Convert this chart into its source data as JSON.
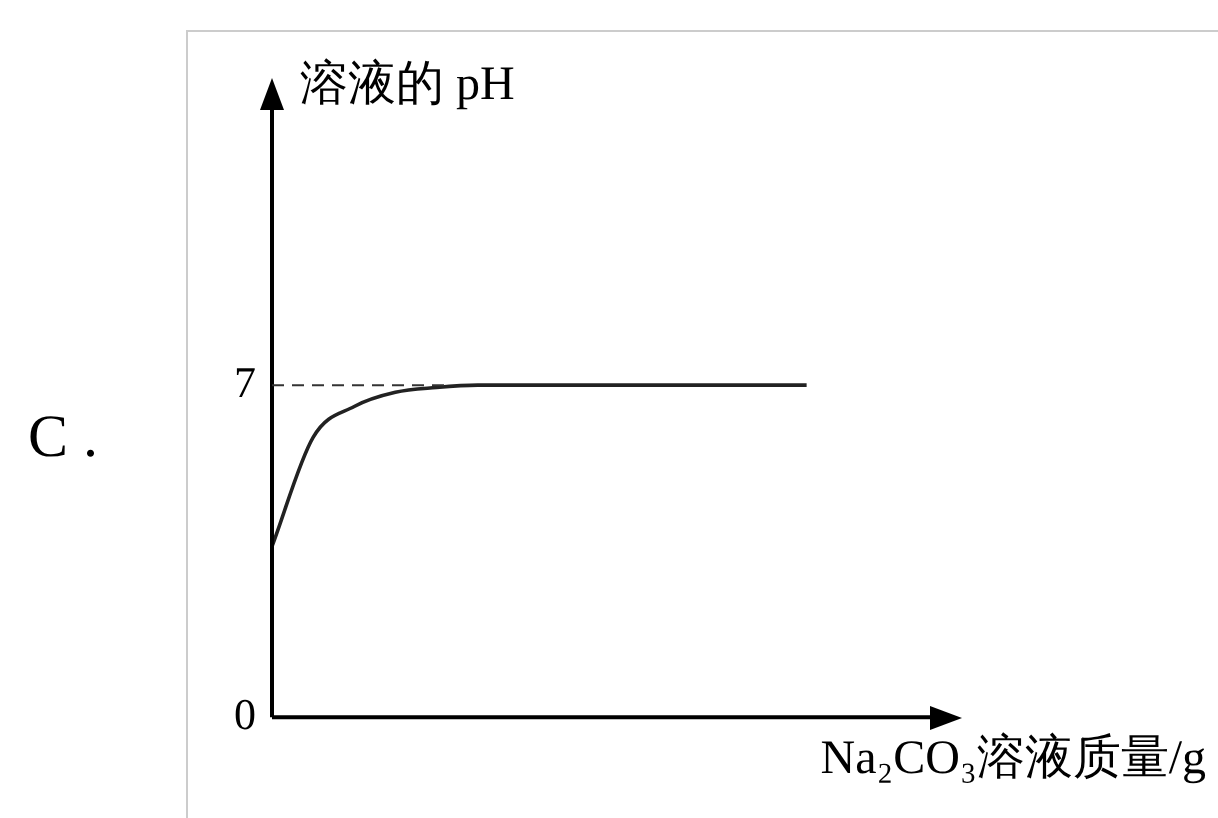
{
  "chart_data": {
    "type": "line",
    "title": "溶液的 pH",
    "xlabel": "Na₂CO₃溶液质量/g",
    "annotations": [
      "C ."
    ],
    "categories": [
      null,
      null,
      null,
      null,
      null,
      null,
      null,
      null,
      null,
      null,
      null,
      null,
      null,
      null,
      null,
      null,
      null
    ],
    "series": [
      {
        "color": "#222222",
        "values": [
          3.6,
          5.9,
          6.55,
          6.85,
          6.95,
          7,
          7,
          7,
          7,
          7,
          7,
          7,
          7,
          7,
          null,
          null,
          null
        ]
      }
    ],
    "ylim": [
      0,
      12.8
    ],
    "yticks": [
      0,
      7
    ],
    "ref_lines": [
      {
        "axis": "y",
        "value": 7,
        "line_style": "dashed",
        "color": "#333333"
      }
    ],
    "grid": false,
    "legend": false,
    "marker": "none",
    "line_style": "solid"
  }
}
